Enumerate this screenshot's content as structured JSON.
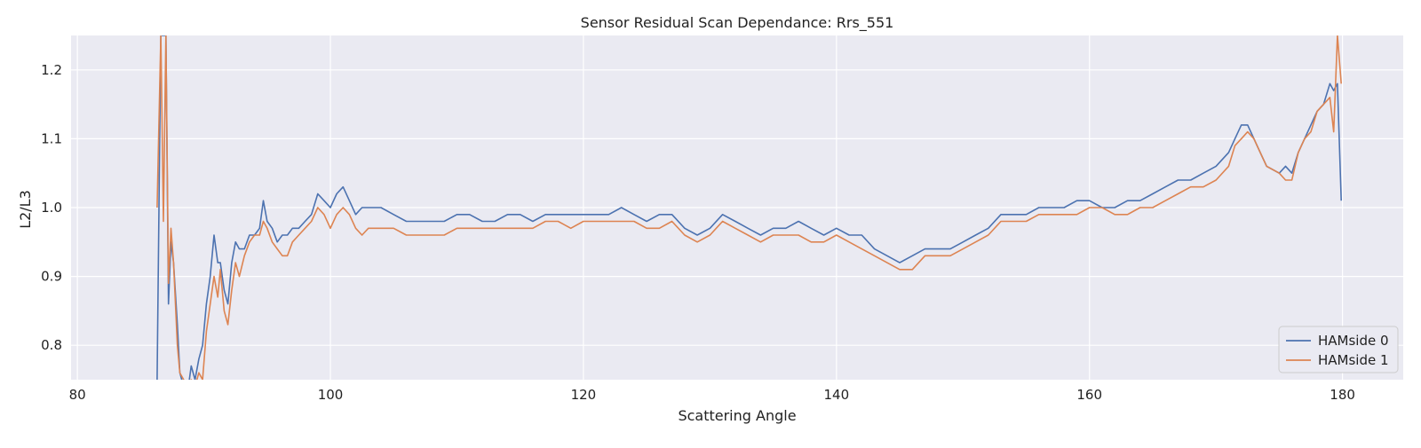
{
  "chart_data": {
    "type": "line",
    "title": "Sensor Residual Scan Dependance: Rrs_551",
    "xlabel": "Scattering Angle",
    "ylabel": "L2/L3",
    "xlim": [
      79.5,
      184.8
    ],
    "ylim": [
      0.75,
      1.25
    ],
    "xticks": [
      80,
      100,
      120,
      140,
      160,
      180
    ],
    "xtick_labels": [
      "80",
      "100",
      "120",
      "140",
      "160",
      "180"
    ],
    "yticks": [
      0.8,
      0.9,
      1.0,
      1.1,
      1.2
    ],
    "ytick_labels": [
      "0.8",
      "0.9",
      "1.0",
      "1.1",
      "1.2"
    ],
    "grid": true,
    "legend_position": "lower-right",
    "background_color": "#eaeaf2",
    "series": [
      {
        "name": "HAMside 0",
        "color": "#4c72b0",
        "x": [
          86.3,
          86.6,
          86.8,
          87.0,
          87.2,
          87.4,
          87.6,
          87.9,
          88.1,
          88.4,
          88.7,
          89.0,
          89.3,
          89.6,
          89.9,
          90.2,
          90.5,
          90.8,
          91.1,
          91.3,
          91.6,
          91.9,
          92.2,
          92.5,
          92.8,
          93.2,
          93.6,
          94.0,
          94.4,
          94.7,
          95.0,
          95.4,
          95.8,
          96.2,
          96.6,
          97.0,
          97.5,
          98.0,
          98.5,
          99.0,
          99.5,
          100.0,
          100.5,
          101.0,
          101.5,
          102.0,
          102.5,
          103.0,
          104.0,
          105.0,
          106.0,
          107.0,
          108.0,
          109.0,
          110.0,
          111.0,
          112.0,
          113.0,
          114.0,
          115.0,
          116.0,
          117.0,
          118.0,
          119.0,
          120.0,
          121.0,
          122.0,
          123.0,
          124.0,
          125.0,
          126.0,
          127.0,
          128.0,
          129.0,
          130.0,
          131.0,
          132.0,
          133.0,
          134.0,
          135.0,
          136.0,
          137.0,
          138.0,
          139.0,
          140.0,
          141.0,
          142.0,
          143.0,
          144.0,
          145.0,
          146.0,
          147.0,
          148.0,
          149.0,
          150.0,
          151.0,
          152.0,
          153.0,
          154.0,
          155.0,
          156.0,
          157.0,
          158.0,
          159.0,
          160.0,
          161.0,
          162.0,
          163.0,
          164.0,
          165.0,
          166.0,
          167.0,
          168.0,
          169.0,
          170.0,
          171.0,
          171.5,
          172.0,
          172.5,
          173.0,
          173.5,
          174.0,
          175.0,
          175.5,
          176.0,
          176.5,
          177.0,
          177.5,
          178.0,
          178.5,
          179.0,
          179.3,
          179.6,
          179.9
        ],
        "y": [
          0.75,
          1.25,
          1.25,
          1.25,
          0.86,
          0.95,
          0.92,
          0.83,
          0.76,
          0.74,
          0.73,
          0.77,
          0.75,
          0.78,
          0.8,
          0.86,
          0.9,
          0.96,
          0.92,
          0.92,
          0.88,
          0.86,
          0.92,
          0.95,
          0.94,
          0.94,
          0.96,
          0.96,
          0.97,
          1.01,
          0.98,
          0.97,
          0.95,
          0.96,
          0.96,
          0.97,
          0.97,
          0.98,
          0.99,
          1.02,
          1.01,
          1.0,
          1.02,
          1.03,
          1.01,
          0.99,
          1.0,
          1.0,
          1.0,
          0.99,
          0.98,
          0.98,
          0.98,
          0.98,
          0.99,
          0.99,
          0.98,
          0.98,
          0.99,
          0.99,
          0.98,
          0.99,
          0.99,
          0.99,
          0.99,
          0.99,
          0.99,
          1.0,
          0.99,
          0.98,
          0.99,
          0.99,
          0.97,
          0.96,
          0.97,
          0.99,
          0.98,
          0.97,
          0.96,
          0.97,
          0.97,
          0.98,
          0.97,
          0.96,
          0.97,
          0.96,
          0.96,
          0.94,
          0.93,
          0.92,
          0.93,
          0.94,
          0.94,
          0.94,
          0.95,
          0.96,
          0.97,
          0.99,
          0.99,
          0.99,
          1.0,
          1.0,
          1.0,
          1.01,
          1.01,
          1.0,
          1.0,
          1.01,
          1.01,
          1.02,
          1.03,
          1.04,
          1.04,
          1.05,
          1.06,
          1.08,
          1.1,
          1.12,
          1.12,
          1.1,
          1.08,
          1.06,
          1.05,
          1.06,
          1.05,
          1.08,
          1.1,
          1.12,
          1.14,
          1.15,
          1.18,
          1.17,
          1.18,
          1.01
        ]
      },
      {
        "name": "HAMside 1",
        "color": "#dd8452",
        "x": [
          86.3,
          86.6,
          86.8,
          87.0,
          87.2,
          87.4,
          87.6,
          87.9,
          88.1,
          88.4,
          88.7,
          89.0,
          89.3,
          89.6,
          89.9,
          90.2,
          90.5,
          90.8,
          91.1,
          91.3,
          91.6,
          91.9,
          92.2,
          92.5,
          92.8,
          93.2,
          93.6,
          94.0,
          94.4,
          94.7,
          95.0,
          95.4,
          95.8,
          96.2,
          96.6,
          97.0,
          97.5,
          98.0,
          98.5,
          99.0,
          99.5,
          100.0,
          100.5,
          101.0,
          101.5,
          102.0,
          102.5,
          103.0,
          104.0,
          105.0,
          106.0,
          107.0,
          108.0,
          109.0,
          110.0,
          111.0,
          112.0,
          113.0,
          114.0,
          115.0,
          116.0,
          117.0,
          118.0,
          119.0,
          120.0,
          121.0,
          122.0,
          123.0,
          124.0,
          125.0,
          126.0,
          127.0,
          128.0,
          129.0,
          130.0,
          131.0,
          132.0,
          133.0,
          134.0,
          135.0,
          136.0,
          137.0,
          138.0,
          139.0,
          140.0,
          141.0,
          142.0,
          143.0,
          144.0,
          145.0,
          146.0,
          147.0,
          148.0,
          149.0,
          150.0,
          151.0,
          152.0,
          153.0,
          154.0,
          155.0,
          156.0,
          157.0,
          158.0,
          159.0,
          160.0,
          161.0,
          162.0,
          163.0,
          164.0,
          165.0,
          166.0,
          167.0,
          168.0,
          169.0,
          170.0,
          171.0,
          171.5,
          172.0,
          172.5,
          173.0,
          173.5,
          174.0,
          175.0,
          175.5,
          176.0,
          176.5,
          177.0,
          177.5,
          178.0,
          178.5,
          179.0,
          179.3,
          179.6,
          179.9
        ],
        "y": [
          1.0,
          1.25,
          0.98,
          1.25,
          0.89,
          0.97,
          0.92,
          0.8,
          0.76,
          0.75,
          0.74,
          0.75,
          0.74,
          0.76,
          0.75,
          0.82,
          0.86,
          0.9,
          0.87,
          0.91,
          0.85,
          0.83,
          0.88,
          0.92,
          0.9,
          0.93,
          0.95,
          0.96,
          0.96,
          0.98,
          0.97,
          0.95,
          0.94,
          0.93,
          0.93,
          0.95,
          0.96,
          0.97,
          0.98,
          1.0,
          0.99,
          0.97,
          0.99,
          1.0,
          0.99,
          0.97,
          0.96,
          0.97,
          0.97,
          0.97,
          0.96,
          0.96,
          0.96,
          0.96,
          0.97,
          0.97,
          0.97,
          0.97,
          0.97,
          0.97,
          0.97,
          0.98,
          0.98,
          0.97,
          0.98,
          0.98,
          0.98,
          0.98,
          0.98,
          0.97,
          0.97,
          0.98,
          0.96,
          0.95,
          0.96,
          0.98,
          0.97,
          0.96,
          0.95,
          0.96,
          0.96,
          0.96,
          0.95,
          0.95,
          0.96,
          0.95,
          0.94,
          0.93,
          0.92,
          0.91,
          0.91,
          0.93,
          0.93,
          0.93,
          0.94,
          0.95,
          0.96,
          0.98,
          0.98,
          0.98,
          0.99,
          0.99,
          0.99,
          0.99,
          1.0,
          1.0,
          0.99,
          0.99,
          1.0,
          1.0,
          1.01,
          1.02,
          1.03,
          1.03,
          1.04,
          1.06,
          1.09,
          1.1,
          1.11,
          1.1,
          1.08,
          1.06,
          1.05,
          1.04,
          1.04,
          1.08,
          1.1,
          1.11,
          1.14,
          1.15,
          1.16,
          1.11,
          1.25,
          1.18
        ]
      }
    ]
  }
}
